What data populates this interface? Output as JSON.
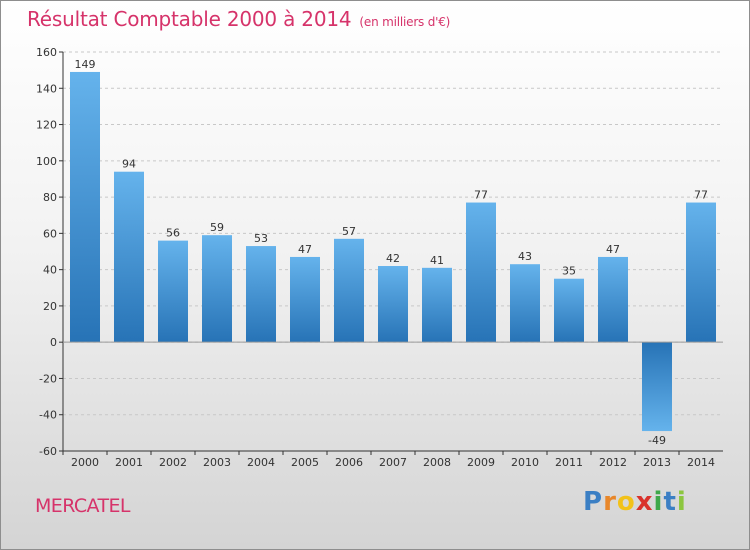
{
  "header": {
    "title": "Résultat Comptable 2000 à 2014",
    "subtitle": "(en milliers d'€)"
  },
  "footer": {
    "place": "MERCATEL",
    "brand_letters": [
      "P",
      "r",
      "o",
      "x",
      "i",
      "t",
      "i"
    ],
    "brand_colors": [
      "#3b7fc4",
      "#e8872a",
      "#f2c21a",
      "#d9322c",
      "#3ea84a",
      "#3b7fc4",
      "#8cc63f"
    ]
  },
  "colors": {
    "title": "#d6336a",
    "bar_light": "#62b0ea",
    "bar_dark": "#2a79ba",
    "axis": "#333333",
    "grid": "#c8c8c8",
    "text": "#333333"
  },
  "chart_data": {
    "type": "bar",
    "categories": [
      "2000",
      "2001",
      "2002",
      "2003",
      "2004",
      "2005",
      "2006",
      "2007",
      "2008",
      "2009",
      "2010",
      "2011",
      "2012",
      "2013",
      "2014"
    ],
    "values": [
      149,
      94,
      56,
      59,
      53,
      47,
      57,
      42,
      41,
      77,
      43,
      35,
      47,
      -49,
      77
    ],
    "ylim": [
      -60,
      160
    ],
    "yticks": [
      -60,
      -40,
      -20,
      0,
      20,
      40,
      60,
      80,
      100,
      120,
      140,
      160
    ],
    "grid": true,
    "grid_style": "dashed-horizontal",
    "data_labels": true
  }
}
